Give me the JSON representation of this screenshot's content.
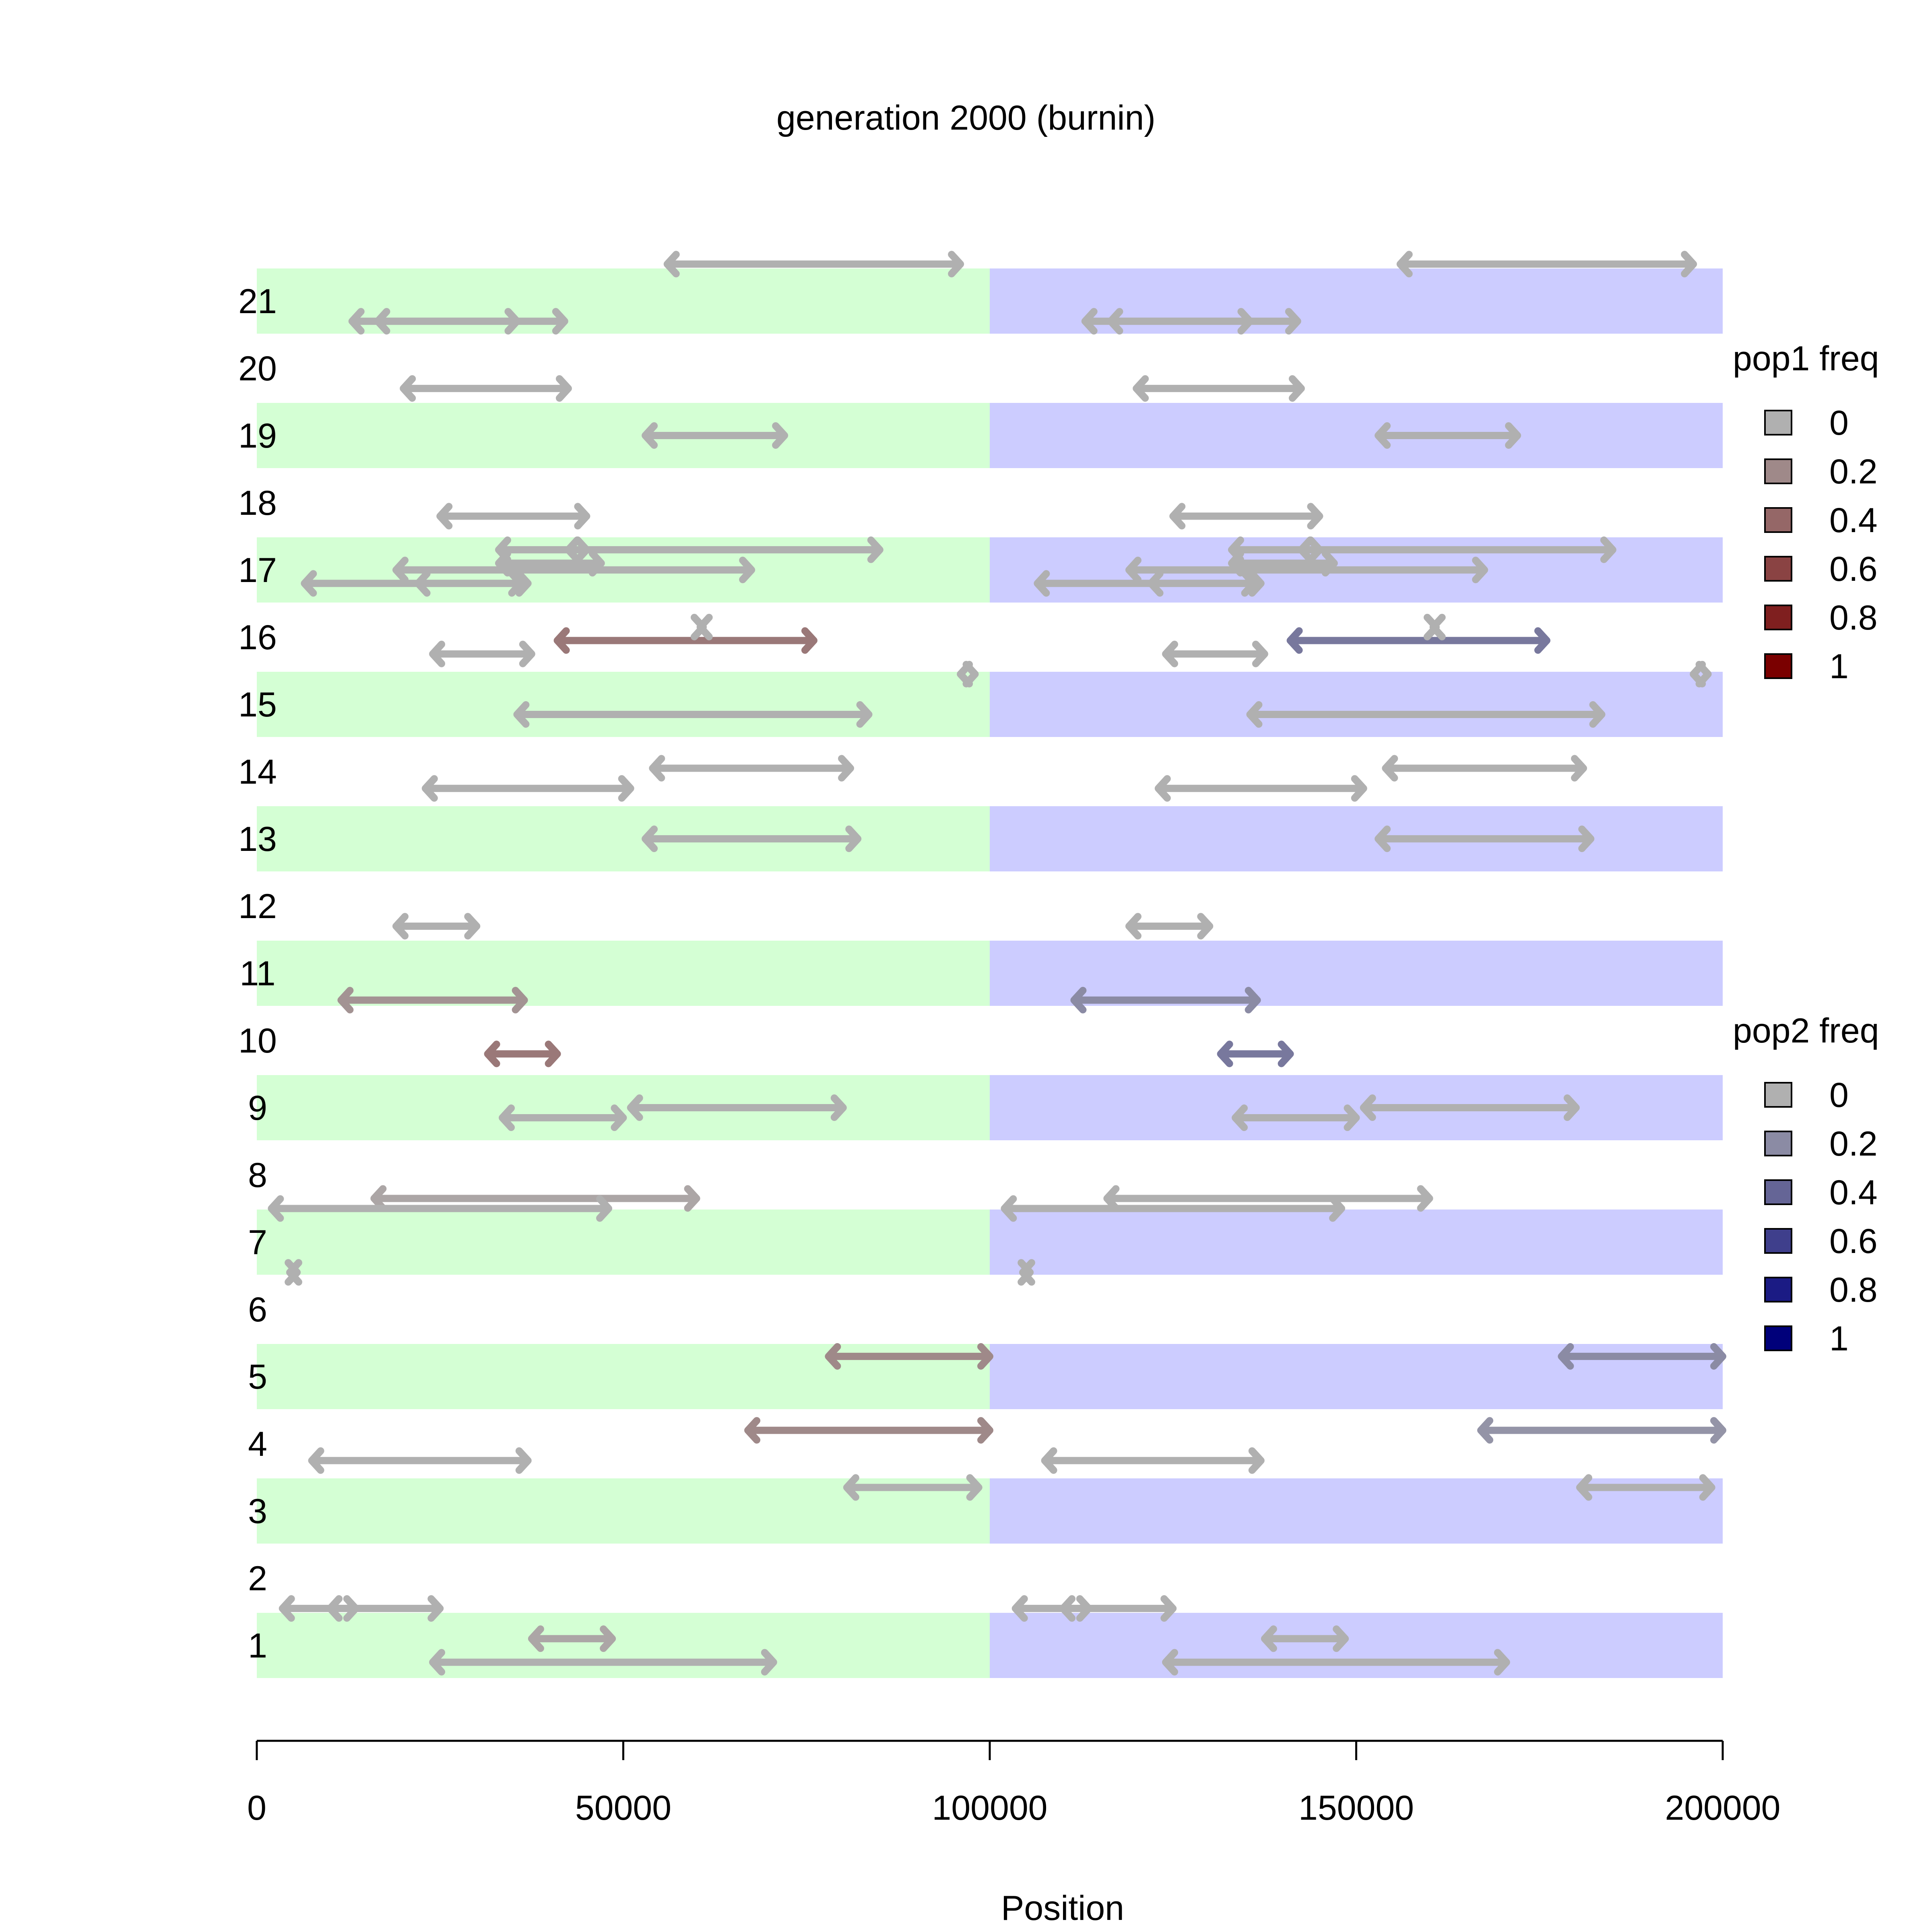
{
  "chart_data": {
    "type": "chromosome-inversion-map",
    "title": "generation 2000 (burnin)",
    "xlabel": "Position",
    "x_ticks": [
      0,
      50000,
      100000,
      150000,
      200000
    ],
    "x_tick_labels": [
      "0",
      "50000",
      "100000",
      "150000",
      "200000"
    ],
    "xlim": [
      0,
      200000
    ],
    "rows": [
      "1",
      "2",
      "3",
      "4",
      "5",
      "6",
      "7",
      "8",
      "9",
      "10",
      "11",
      "12",
      "13",
      "14",
      "15",
      "16",
      "17",
      "18",
      "19",
      "20",
      "21"
    ],
    "shaded_rows": [
      1,
      3,
      5,
      7,
      9,
      11,
      13,
      15,
      17,
      19,
      21
    ],
    "pop1_region": [
      0,
      100000
    ],
    "pop2_region": [
      100000,
      200000
    ],
    "pop1_band_color": "#d4ffd4",
    "pop2_band_color": "#ccccff",
    "legends": [
      {
        "title": "pop1 freq",
        "labels": [
          "0",
          "0.2",
          "0.4",
          "0.6",
          "0.8",
          "1"
        ],
        "colors": [
          "#b0b0b0",
          "#9f8989",
          "#956767",
          "#8a4343",
          "#7f1f1f",
          "#7a0000"
        ]
      },
      {
        "title": "pop2 freq",
        "labels": [
          "0",
          "0.2",
          "0.4",
          "0.6",
          "0.8",
          "1"
        ],
        "colors": [
          "#b0b0b0",
          "#8b8ba4",
          "#656596",
          "#3f3f8c",
          "#1b1b84",
          "#00007a"
        ]
      }
    ],
    "segments": [
      {
        "row": 21,
        "offset": 0.55,
        "start": 56000,
        "end": 96000,
        "pop": 1,
        "freq": 0
      },
      {
        "row": 21,
        "offset": 0.55,
        "start": 156000,
        "end": 196000,
        "pop": 2,
        "freq": 0
      },
      {
        "row": 21,
        "offset": -0.3,
        "start": 13000,
        "end": 42000,
        "pop": 1,
        "freq": 0
      },
      {
        "row": 21,
        "offset": -0.3,
        "start": 16500,
        "end": 35500,
        "pop": 1,
        "freq": 0
      },
      {
        "row": 21,
        "offset": -0.3,
        "start": 113000,
        "end": 142000,
        "pop": 2,
        "freq": 0
      },
      {
        "row": 21,
        "offset": -0.3,
        "start": 116500,
        "end": 135500,
        "pop": 2,
        "freq": 0
      },
      {
        "row": 20,
        "offset": -0.3,
        "start": 20000,
        "end": 42500,
        "pop": 1,
        "freq": 0
      },
      {
        "row": 20,
        "offset": -0.3,
        "start": 120000,
        "end": 142500,
        "pop": 2,
        "freq": 0
      },
      {
        "row": 19,
        "offset": 0,
        "start": 53000,
        "end": 72000,
        "pop": 1,
        "freq": 0
      },
      {
        "row": 19,
        "offset": 0,
        "start": 153000,
        "end": 172000,
        "pop": 2,
        "freq": 0
      },
      {
        "row": 18,
        "offset": -0.2,
        "start": 25000,
        "end": 45000,
        "pop": 1,
        "freq": 0
      },
      {
        "row": 18,
        "offset": -0.2,
        "start": 125000,
        "end": 145000,
        "pop": 2,
        "freq": 0
      },
      {
        "row": 17,
        "offset": 0.3,
        "start": 33000,
        "end": 85000,
        "pop": 1,
        "freq": 0
      },
      {
        "row": 17,
        "offset": 0.3,
        "start": 42500,
        "end": 45000,
        "pop": 1,
        "freq": 0
      },
      {
        "row": 17,
        "offset": 0.1,
        "start": 33000,
        "end": 47000,
        "pop": 1,
        "freq": 0
      },
      {
        "row": 17,
        "offset": 0,
        "start": 19000,
        "end": 67500,
        "pop": 1,
        "freq": 0
      },
      {
        "row": 17,
        "offset": -0.2,
        "start": 6500,
        "end": 37000,
        "pop": 1,
        "freq": 0
      },
      {
        "row": 17,
        "offset": -0.2,
        "start": 22000,
        "end": 36000,
        "pop": 1,
        "freq": 0
      },
      {
        "row": 17,
        "offset": 0.3,
        "start": 133000,
        "end": 185000,
        "pop": 2,
        "freq": 0
      },
      {
        "row": 17,
        "offset": 0.3,
        "start": 142500,
        "end": 145000,
        "pop": 2,
        "freq": 0
      },
      {
        "row": 17,
        "offset": 0.1,
        "start": 133000,
        "end": 147000,
        "pop": 2,
        "freq": 0
      },
      {
        "row": 17,
        "offset": 0,
        "start": 119000,
        "end": 167500,
        "pop": 2,
        "freq": 0
      },
      {
        "row": 17,
        "offset": -0.2,
        "start": 106500,
        "end": 137000,
        "pop": 2,
        "freq": 0
      },
      {
        "row": 17,
        "offset": -0.2,
        "start": 122000,
        "end": 136000,
        "pop": 2,
        "freq": 0
      },
      {
        "row": 16,
        "offset": -0.05,
        "start": 41000,
        "end": 76000,
        "pop": 1,
        "freq": 0.3
      },
      {
        "row": 16,
        "offset": -0.25,
        "start": 24000,
        "end": 37500,
        "pop": 1,
        "freq": 0
      },
      {
        "row": 16,
        "offset": 0.15,
        "start": 60500,
        "end": 60900,
        "pop": 1,
        "freq": 0
      },
      {
        "row": 16,
        "offset": -0.05,
        "start": 141000,
        "end": 176000,
        "pop": 2,
        "freq": 0.3
      },
      {
        "row": 16,
        "offset": -0.25,
        "start": 124000,
        "end": 137500,
        "pop": 2,
        "freq": 0
      },
      {
        "row": 16,
        "offset": 0.15,
        "start": 160500,
        "end": 160900,
        "pop": 2,
        "freq": 0
      },
      {
        "row": 15,
        "offset": 0.45,
        "start": 96000,
        "end": 98000,
        "pop": 1,
        "freq": 0
      },
      {
        "row": 15,
        "offset": 0.45,
        "start": 196000,
        "end": 198000,
        "pop": 2,
        "freq": 0
      },
      {
        "row": 15,
        "offset": -0.15,
        "start": 35500,
        "end": 83500,
        "pop": 1,
        "freq": 0
      },
      {
        "row": 15,
        "offset": -0.15,
        "start": 135500,
        "end": 183500,
        "pop": 2,
        "freq": 0
      },
      {
        "row": 14,
        "offset": 0.05,
        "start": 54000,
        "end": 81000,
        "pop": 1,
        "freq": 0
      },
      {
        "row": 14,
        "offset": -0.25,
        "start": 23000,
        "end": 51000,
        "pop": 1,
        "freq": 0
      },
      {
        "row": 14,
        "offset": 0.05,
        "start": 154000,
        "end": 181000,
        "pop": 2,
        "freq": 0
      },
      {
        "row": 14,
        "offset": -0.25,
        "start": 123000,
        "end": 151000,
        "pop": 2,
        "freq": 0
      },
      {
        "row": 13,
        "offset": 0,
        "start": 53000,
        "end": 82000,
        "pop": 1,
        "freq": 0
      },
      {
        "row": 13,
        "offset": 0,
        "start": 153000,
        "end": 182000,
        "pop": 2,
        "freq": 0
      },
      {
        "row": 12,
        "offset": -0.3,
        "start": 19000,
        "end": 30000,
        "pop": 1,
        "freq": 0
      },
      {
        "row": 12,
        "offset": -0.3,
        "start": 119000,
        "end": 130000,
        "pop": 2,
        "freq": 0
      },
      {
        "row": 11,
        "offset": -0.4,
        "start": 11500,
        "end": 36500,
        "pop": 1,
        "freq": 0.15
      },
      {
        "row": 11,
        "offset": -0.4,
        "start": 111500,
        "end": 136500,
        "pop": 2,
        "freq": 0.2
      },
      {
        "row": 10,
        "offset": -0.2,
        "start": 31500,
        "end": 41000,
        "pop": 1,
        "freq": 0.3
      },
      {
        "row": 10,
        "offset": -0.2,
        "start": 131500,
        "end": 141000,
        "pop": 2,
        "freq": 0.3
      },
      {
        "row": 9,
        "offset": 0,
        "start": 51000,
        "end": 80000,
        "pop": 1,
        "freq": 0
      },
      {
        "row": 9,
        "offset": -0.15,
        "start": 33500,
        "end": 50000,
        "pop": 1,
        "freq": 0
      },
      {
        "row": 9,
        "offset": 0,
        "start": 151000,
        "end": 180000,
        "pop": 2,
        "freq": 0
      },
      {
        "row": 9,
        "offset": -0.15,
        "start": 133500,
        "end": 150000,
        "pop": 2,
        "freq": 0
      },
      {
        "row": 8,
        "offset": -0.35,
        "start": 16000,
        "end": 60000,
        "pop": 1,
        "freq": 0.05
      },
      {
        "row": 8,
        "offset": -0.5,
        "start": 2000,
        "end": 48000,
        "pop": 1,
        "freq": 0
      },
      {
        "row": 8,
        "offset": -0.35,
        "start": 116000,
        "end": 160000,
        "pop": 2,
        "freq": 0
      },
      {
        "row": 8,
        "offset": -0.5,
        "start": 102000,
        "end": 148000,
        "pop": 2,
        "freq": 0
      },
      {
        "row": 7,
        "offset": -0.45,
        "start": 4500,
        "end": 5500,
        "pop": 1,
        "freq": 0
      },
      {
        "row": 7,
        "offset": -0.45,
        "start": 104500,
        "end": 105500,
        "pop": 2,
        "freq": 0
      },
      {
        "row": 5,
        "offset": 0.3,
        "start": 78000,
        "end": 100000,
        "pop": 1,
        "freq": 0.2
      },
      {
        "row": 5,
        "offset": 0.3,
        "start": 178000,
        "end": 200000,
        "pop": 2,
        "freq": 0.2
      },
      {
        "row": 4,
        "offset": 0.2,
        "start": 67000,
        "end": 100000,
        "pop": 1,
        "freq": 0.2
      },
      {
        "row": 4,
        "offset": -0.25,
        "start": 7500,
        "end": 37000,
        "pop": 1,
        "freq": 0
      },
      {
        "row": 4,
        "offset": 0.2,
        "start": 167000,
        "end": 200000,
        "pop": 2,
        "freq": 0.15
      },
      {
        "row": 4,
        "offset": -0.25,
        "start": 107500,
        "end": 137000,
        "pop": 2,
        "freq": 0
      },
      {
        "row": 3,
        "offset": 0.35,
        "start": 80500,
        "end": 98500,
        "pop": 1,
        "freq": 0
      },
      {
        "row": 3,
        "offset": 0.35,
        "start": 180500,
        "end": 198500,
        "pop": 2,
        "freq": 0
      },
      {
        "row": 2,
        "offset": -0.45,
        "start": 3500,
        "end": 25000,
        "pop": 1,
        "freq": 0
      },
      {
        "row": 2,
        "offset": -0.45,
        "start": 10000,
        "end": 13500,
        "pop": 1,
        "freq": 0
      },
      {
        "row": 2,
        "offset": -0.45,
        "start": 103500,
        "end": 125000,
        "pop": 2,
        "freq": 0
      },
      {
        "row": 2,
        "offset": -0.45,
        "start": 110000,
        "end": 113500,
        "pop": 2,
        "freq": 0
      },
      {
        "row": 1,
        "offset": 0.1,
        "start": 37500,
        "end": 48500,
        "pop": 1,
        "freq": 0.05
      },
      {
        "row": 1,
        "offset": -0.25,
        "start": 24000,
        "end": 70500,
        "pop": 1,
        "freq": 0
      },
      {
        "row": 1,
        "offset": 0.1,
        "start": 137500,
        "end": 148500,
        "pop": 2,
        "freq": 0
      },
      {
        "row": 1,
        "offset": -0.25,
        "start": 124000,
        "end": 170500,
        "pop": 2,
        "freq": 0
      }
    ]
  }
}
